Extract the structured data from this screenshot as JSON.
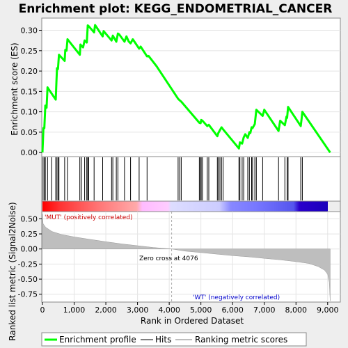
{
  "title": "Enrichment plot: KEGG_ENDOMETRIAL_CANCER",
  "colors": {
    "enrichment": "#00ff00",
    "hits": "#000000",
    "metric_fill": "#bebebe",
    "pos_label": "#cc0000",
    "neg_label": "#0000cc"
  },
  "chart_data": [
    {
      "type": "line",
      "panel": "enrichment-score",
      "ylabel": "Enrichment score (ES)",
      "ylim": [
        -0.01,
        0.33
      ],
      "yticks": [
        0.0,
        0.05,
        0.1,
        0.15,
        0.2,
        0.25,
        0.3
      ],
      "ytick_labels": [
        "0.00",
        "0.05",
        "0.10",
        "0.15",
        "0.20",
        "0.25",
        "0.30"
      ],
      "xlim": [
        0,
        9400
      ],
      "series": [
        {
          "x": [
            0,
            30,
            60,
            90,
            130,
            160,
            200,
            420,
            440,
            460,
            490,
            520,
            700,
            720,
            760,
            790,
            1180,
            1200,
            1230,
            1280,
            1330,
            1400,
            1430,
            1460,
            1630,
            1660,
            1900,
            1930,
            2180,
            2220,
            2250,
            2330,
            2380,
            2420,
            2590,
            2650,
            2720,
            2780,
            2850,
            3050,
            3100,
            3300,
            3350,
            3600,
            4280,
            4330,
            4380,
            4950,
            4990,
            5010,
            5050,
            5200,
            5250,
            5520,
            5550,
            5600,
            5650,
            5700,
            6200,
            6230,
            6300,
            6350,
            6400,
            6480,
            6530,
            6560,
            6600,
            6630,
            6700,
            6750,
            6950,
            7000,
            7450,
            7500,
            7650,
            7700,
            7720,
            7750,
            8150,
            8180,
            8200,
            9080
          ],
          "y": [
            0.0,
            0.06,
            0.06,
            0.115,
            0.11,
            0.16,
            0.155,
            0.13,
            0.17,
            0.207,
            0.205,
            0.24,
            0.225,
            0.252,
            0.25,
            0.278,
            0.24,
            0.265,
            0.262,
            0.258,
            0.275,
            0.27,
            0.312,
            0.31,
            0.295,
            0.313,
            0.285,
            0.298,
            0.275,
            0.287,
            0.283,
            0.272,
            0.292,
            0.29,
            0.272,
            0.285,
            0.273,
            0.268,
            0.278,
            0.255,
            0.26,
            0.236,
            0.237,
            0.212,
            0.132,
            0.128,
            0.125,
            0.073,
            0.072,
            0.08,
            0.078,
            0.065,
            0.068,
            0.04,
            0.048,
            0.055,
            0.062,
            0.057,
            0.01,
            0.025,
            0.022,
            0.037,
            0.045,
            0.036,
            0.05,
            0.048,
            0.062,
            0.06,
            0.07,
            0.105,
            0.09,
            0.105,
            0.053,
            0.078,
            0.067,
            0.088,
            0.085,
            0.112,
            0.065,
            0.085,
            0.1,
            0.0
          ]
        }
      ]
    },
    {
      "type": "hits",
      "panel": "hits",
      "positions": [
        20,
        60,
        90,
        160,
        290,
        420,
        460,
        500,
        520,
        700,
        790,
        1180,
        1230,
        1330,
        1400,
        1430,
        1460,
        1630,
        1900,
        2180,
        2220,
        2330,
        2380,
        2590,
        2780,
        3050,
        3300,
        4280,
        4330,
        4380,
        4950,
        4990,
        5010,
        5050,
        5200,
        5250,
        5520,
        5550,
        5600,
        5650,
        5700,
        6200,
        6230,
        6300,
        6350,
        6480,
        6530,
        6600,
        6630,
        6700,
        6750,
        6950,
        7450,
        7650,
        7720,
        7750,
        8150,
        8200
      ]
    },
    {
      "type": "area",
      "panel": "ranked-metric",
      "ylabel": "Ranked list metric (Signal2Noise)",
      "xlabel": "Rank in Ordered Dataset",
      "ylim": [
        -0.88,
        0.62
      ],
      "yticks": [
        0.5,
        0.25,
        0.0,
        -0.25,
        -0.5,
        -0.75
      ],
      "ytick_labels": [
        "0.50",
        "0.25",
        "0.00",
        "-0.25",
        "-0.50",
        "-0.75"
      ],
      "xticks": [
        0,
        1000,
        2000,
        3000,
        4000,
        5000,
        6000,
        7000,
        8000,
        9000
      ],
      "xtick_labels": [
        "0",
        "1,000",
        "2,000",
        "3,000",
        "4,000",
        "5,000",
        "6,000",
        "7,000",
        "8,000",
        "9,000"
      ],
      "x": [
        0,
        20,
        100,
        300,
        600,
        1000,
        1500,
        2000,
        2500,
        3000,
        3500,
        4076,
        4500,
        5000,
        5500,
        6000,
        6500,
        7000,
        7500,
        8000,
        8400,
        8700,
        8900,
        9000,
        9050,
        9080
      ],
      "values": [
        0.58,
        0.42,
        0.36,
        0.29,
        0.24,
        0.2,
        0.16,
        0.12,
        0.085,
        0.055,
        0.025,
        0.0,
        -0.035,
        -0.06,
        -0.085,
        -0.11,
        -0.13,
        -0.155,
        -0.18,
        -0.21,
        -0.24,
        -0.29,
        -0.35,
        -0.42,
        -0.55,
        -0.86
      ],
      "zero_cross_rank": 4076,
      "annotations": {
        "zero_cross": "Zero cross at 4076",
        "positive": "'MUT' (positively correlated)",
        "negative": "'WT' (negatively correlated)"
      }
    }
  ],
  "legend": [
    {
      "label": "Enrichment profile",
      "color": "#00ff00"
    },
    {
      "label": "Hits",
      "color": "#000000"
    },
    {
      "label": "Ranking metric scores",
      "color": "#bebebe"
    }
  ]
}
